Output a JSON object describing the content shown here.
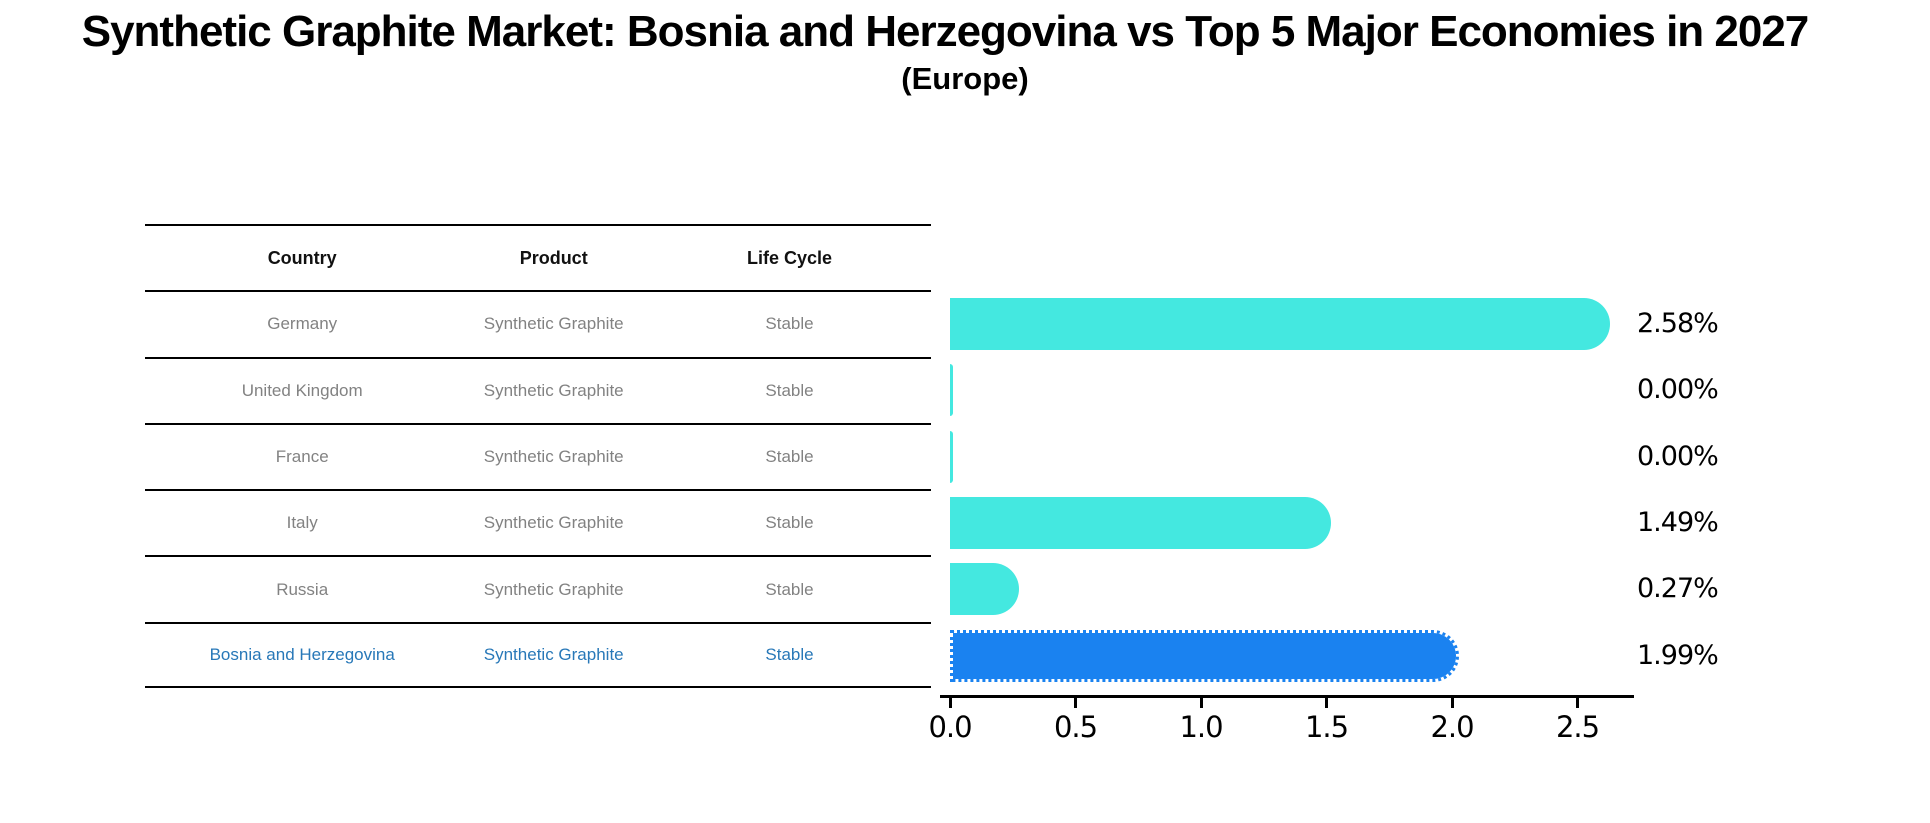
{
  "title": "Synthetic Graphite Market: Bosnia and Herzegovina vs Top 5 Major Economies in 2027",
  "subtitle": "(Europe)",
  "table": {
    "headers": [
      "Country",
      "Product",
      "Life Cycle"
    ],
    "rows": [
      {
        "country": "Germany",
        "product": "Synthetic Graphite",
        "life_cycle": "Stable",
        "highlight": false
      },
      {
        "country": "United Kingdom",
        "product": "Synthetic Graphite",
        "life_cycle": "Stable",
        "highlight": false
      },
      {
        "country": "France",
        "product": "Synthetic Graphite",
        "life_cycle": "Stable",
        "highlight": false
      },
      {
        "country": "Italy",
        "product": "Synthetic Graphite",
        "life_cycle": "Stable",
        "highlight": false
      },
      {
        "country": "Russia",
        "product": "Synthetic Graphite",
        "life_cycle": "Stable",
        "highlight": false
      },
      {
        "country": "Bosnia and Herzegovina",
        "product": "Synthetic Graphite",
        "life_cycle": "Stable",
        "highlight": true
      }
    ]
  },
  "chart_data": {
    "type": "bar",
    "orientation": "horizontal",
    "title": "Synthetic Graphite Market: Bosnia and Herzegovina vs Top 5 Major Economies in 2027 (Europe)",
    "categories": [
      "Germany",
      "United Kingdom",
      "France",
      "Italy",
      "Russia",
      "Bosnia and Herzegovina"
    ],
    "values": [
      2.58,
      0.0,
      0.0,
      1.49,
      0.27,
      1.99
    ],
    "value_labels": [
      "2.58%",
      "0.00%",
      "0.00%",
      "1.49%",
      "0.27%",
      "1.99%"
    ],
    "value_suffix": "%",
    "x_ticks": [
      0.0,
      0.5,
      1.0,
      1.5,
      2.0,
      2.5
    ],
    "x_tick_labels": [
      "0.0",
      "0.5",
      "1.0",
      "1.5",
      "2.0",
      "2.5"
    ],
    "xlim": [
      0,
      2.73
    ],
    "grid": false,
    "legend": "none",
    "highlight_index": 5
  },
  "colors": {
    "bar": "#44E8E0",
    "highlight_bar": "#1A82F0",
    "highlight_text": "#2878B8",
    "row_text": "#828282",
    "header_text": "#111111",
    "axis": "#000000"
  }
}
